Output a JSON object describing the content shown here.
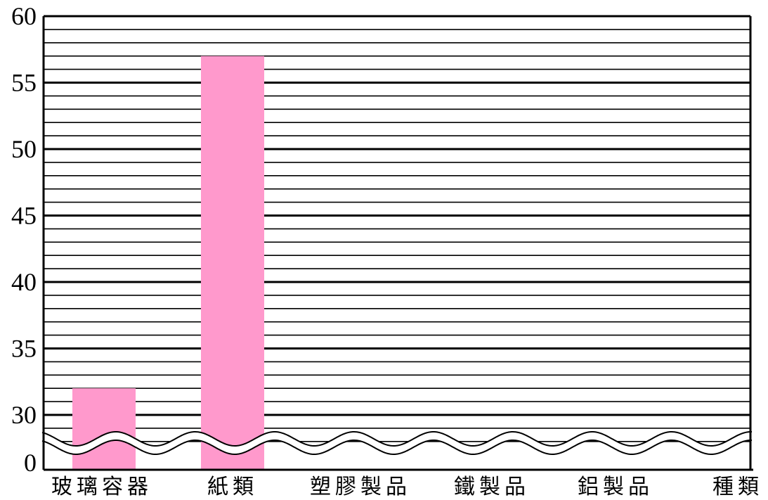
{
  "chart_data": {
    "type": "bar",
    "title": "",
    "xlabel": "種類",
    "ylabel": "",
    "categories": [
      "玻璃容器",
      "紙類",
      "塑膠製品",
      "鐵製品",
      "鋁製品"
    ],
    "values": [
      32,
      57,
      0,
      0,
      0
    ],
    "ylim": [
      0,
      60
    ],
    "axis_break": {
      "below": 30
    },
    "y_tick_labels": [
      "0",
      "30",
      "35",
      "40",
      "45",
      "50",
      "55",
      "60"
    ],
    "minor_grid_step": 1,
    "grid": true,
    "bar_color": "#ff99cc"
  }
}
